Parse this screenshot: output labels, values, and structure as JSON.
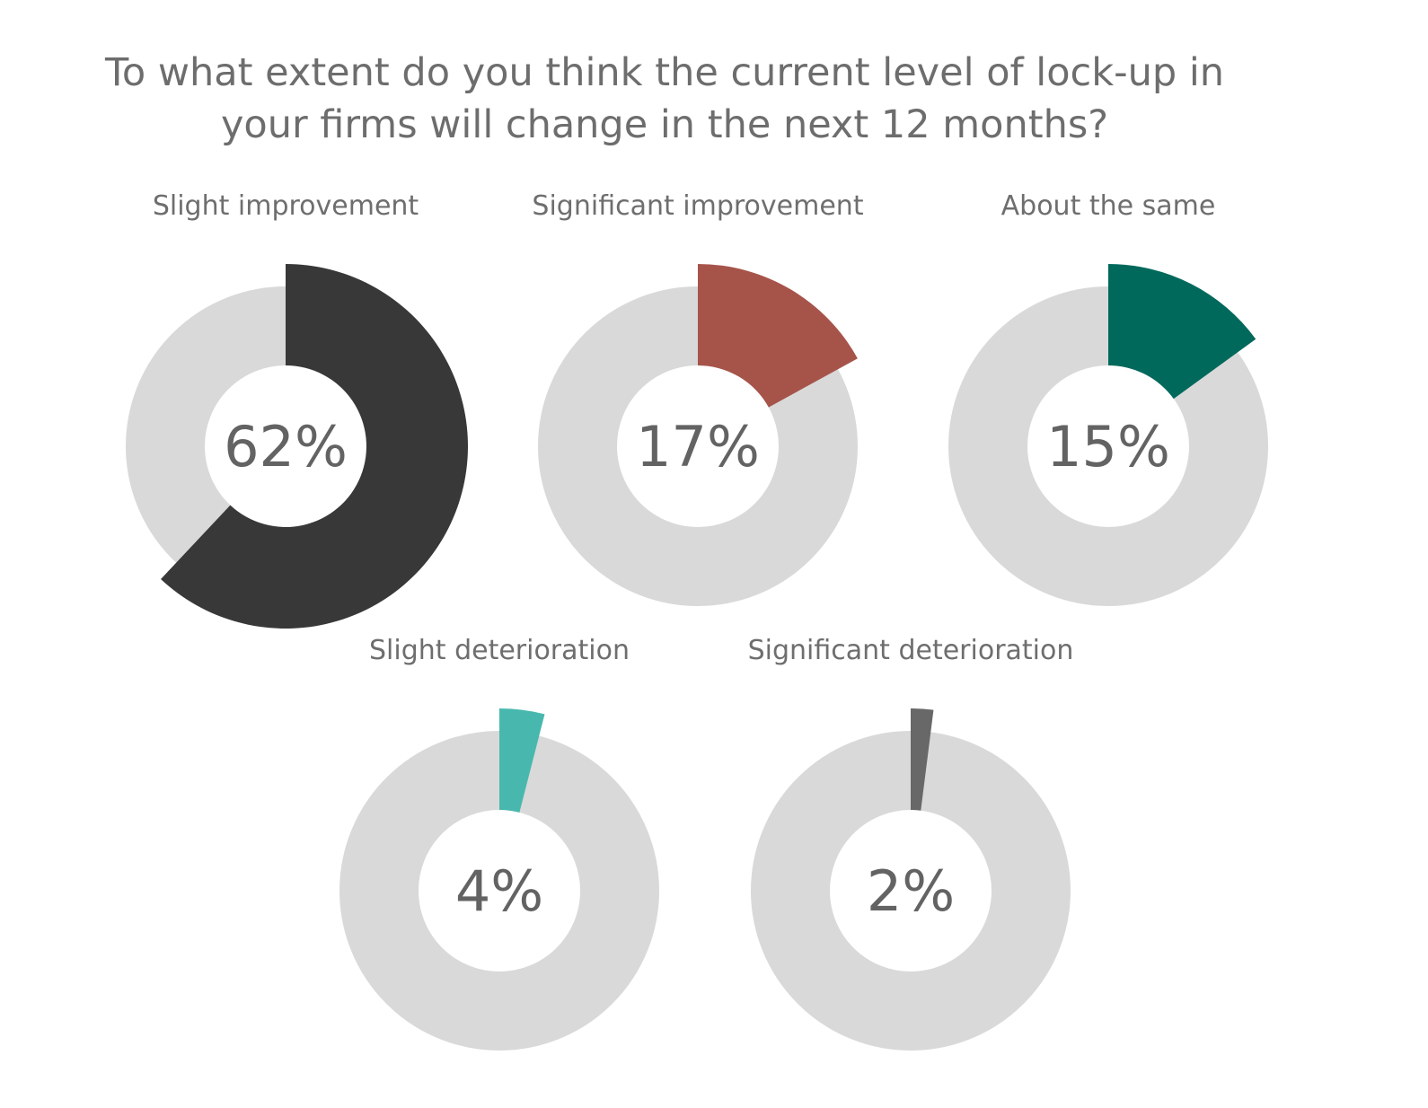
{
  "chart_data": {
    "type": "pie",
    "title_lines": [
      "To what extent do you think the current level of lock-up in",
      "your firms will change in the next 12 months?"
    ],
    "track_color": "#d9d9d9",
    "items": [
      {
        "name": "Slight improvement",
        "value": 62,
        "label": "62%",
        "color": "#383838"
      },
      {
        "name": "Significant improvement",
        "value": 17,
        "label": "17%",
        "color": "#a6544a"
      },
      {
        "name": "About the same",
        "value": 15,
        "label": "15%",
        "color": "#00695c"
      },
      {
        "name": "Slight deterioration",
        "value": 4,
        "label": "4%",
        "color": "#48b8ae"
      },
      {
        "name": "Significant deterioration",
        "value": 2,
        "label": "2%",
        "color": "#686868"
      }
    ]
  }
}
